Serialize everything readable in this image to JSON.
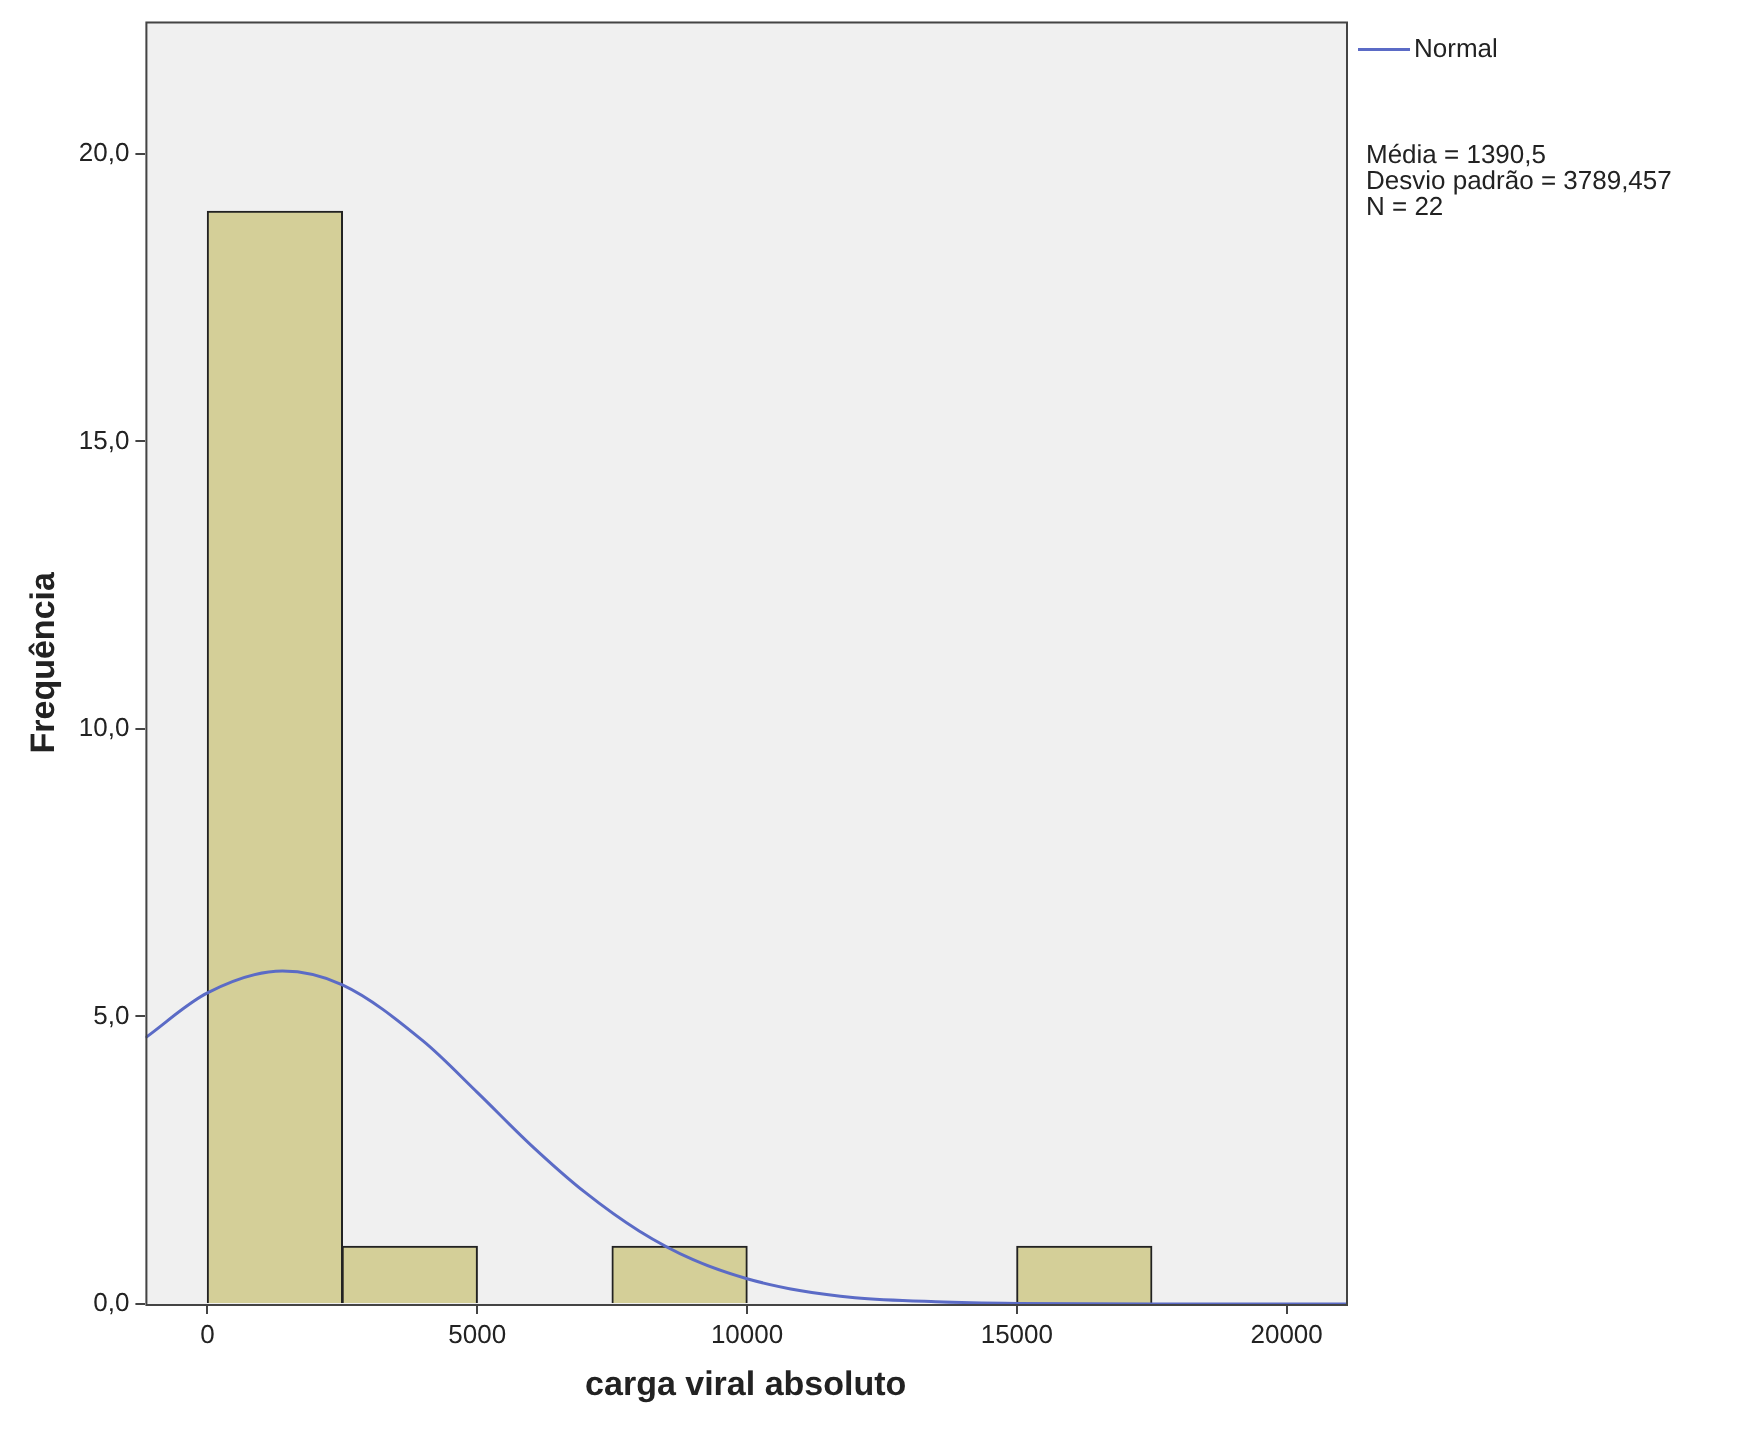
{
  "chart_data": {
    "type": "histogram",
    "xlabel": "carga viral absoluto",
    "ylabel": "Frequência",
    "bins": [
      0,
      2500,
      5000,
      7500,
      10000,
      12500,
      15000,
      17500
    ],
    "values": [
      19,
      1,
      0,
      1,
      0,
      0,
      1
    ],
    "color": "#d4cf98",
    "series": [
      {
        "name": "Normal",
        "type": "line",
        "color": "#5b6bc6",
        "x": [
          -1150,
          0,
          1390.5,
          2500,
          4000,
          5000,
          6000,
          7000,
          8000,
          9000,
          10000,
          11000,
          12000,
          13500,
          15000,
          17500,
          21100
        ],
        "values": [
          4.63,
          5.41,
          5.79,
          5.55,
          4.57,
          3.68,
          2.76,
          1.94,
          1.27,
          0.77,
          0.44,
          0.23,
          0.11,
          0.04,
          0.01,
          0,
          0
        ]
      }
    ],
    "xlim": [
      -1150,
      21100
    ],
    "xticks": [
      0,
      5000,
      10000,
      15000,
      20000
    ],
    "ylim": [
      0,
      22.3
    ],
    "yticks": [
      {
        "value": 0,
        "label": "0,0"
      },
      {
        "value": 5,
        "label": "5,0"
      },
      {
        "value": 10,
        "label": "10,0"
      },
      {
        "value": 15,
        "label": "15,0"
      },
      {
        "value": 20,
        "label": "20,0"
      }
    ],
    "grid": false,
    "legend": "top right",
    "annotations": [
      "Média = 1390,5",
      "Desvio padrão = 3789,457",
      "N = 22"
    ]
  }
}
